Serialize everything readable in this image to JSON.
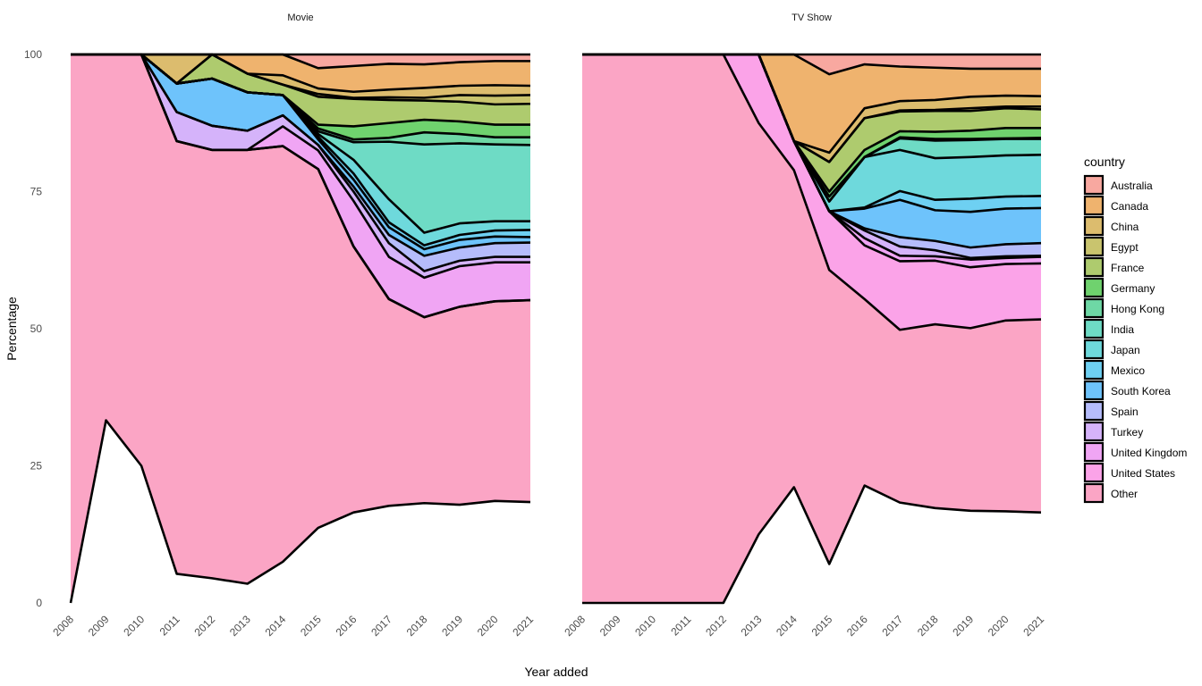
{
  "chart_data": {
    "type": "area",
    "stacking": "percent",
    "xlabel": "Year added",
    "ylabel": "Percentage",
    "ylim": [
      0,
      100
    ],
    "yticks": [
      0,
      25,
      50,
      75,
      100
    ],
    "x": [
      2008,
      2009,
      2010,
      2011,
      2012,
      2013,
      2014,
      2015,
      2016,
      2017,
      2018,
      2019,
      2020,
      2021
    ],
    "grid": false,
    "legend": {
      "title": "country",
      "position": "right",
      "entries": [
        "Australia",
        "Canada",
        "China",
        "Egypt",
        "France",
        "Germany",
        "Hong Kong",
        "India",
        "Japan",
        "Mexico",
        "South Korea",
        "Spain",
        "Turkey",
        "United Kingdom",
        "United States",
        "Other"
      ]
    },
    "colors": {
      "Australia": "#F8A8A0",
      "Canada": "#EFB36E",
      "China": "#DCBC6E",
      "Egypt": "#C9C46E",
      "France": "#AECB6E",
      "Germany": "#6FD26E",
      "Hong Kong": "#6ED8A5",
      "India": "#6EDBC5",
      "Japan": "#6ED9DC",
      "Mexico": "#6ED0F2",
      "South Korea": "#6EC3FB",
      "Spain": "#B5BCFB",
      "Turkey": "#D5B3FA",
      "United Kingdom": "#F0A5F4",
      "United States": "#FBA3E8",
      "Other": "#FBA5C5"
    },
    "panels": [
      {
        "title": "Movie",
        "boundaries": [
          [
            0,
            33.3,
            25,
            5.3,
            4.5,
            3.5,
            7.5,
            13.7,
            16.5,
            17.7,
            18.2,
            17.9,
            18.6,
            18.4
          ],
          [
            100,
            100,
            100,
            84.2,
            82.6,
            82.6,
            83.3,
            79.1,
            65,
            55.4,
            52.1,
            54,
            55,
            55.2
          ],
          [
            100,
            100,
            100,
            84.2,
            82.6,
            82.6,
            83.3,
            79.1,
            65,
            55.4,
            52.1,
            54,
            55,
            55.2
          ],
          [
            100,
            100,
            100,
            84.2,
            82.6,
            82.6,
            86.9,
            82.5,
            73.3,
            63.1,
            59.3,
            61.4,
            62.1,
            62.1
          ],
          [
            100,
            100,
            100,
            89.5,
            87,
            86.1,
            88.9,
            83.5,
            75,
            65.6,
            60.5,
            62.4,
            63.1,
            63.1
          ],
          [
            100,
            100,
            100,
            89.5,
            87,
            86.1,
            88.9,
            83.5,
            75.9,
            67.1,
            63.3,
            64.8,
            65.6,
            65.7
          ],
          [
            100,
            100,
            100,
            94.7,
            95.6,
            93.1,
            92.6,
            84.5,
            77.2,
            68.5,
            64.5,
            66.2,
            66.8,
            66.7
          ],
          [
            100,
            100,
            100,
            94.7,
            95.6,
            93.1,
            92.6,
            85,
            78.3,
            69.4,
            65.2,
            67.1,
            67.9,
            68
          ],
          [
            100,
            100,
            100,
            94.7,
            95.6,
            93.1,
            92.6,
            85.5,
            80.8,
            73.6,
            67.5,
            69.2,
            69.6,
            69.6
          ],
          [
            100,
            100,
            100,
            94.7,
            95.6,
            93.1,
            92.6,
            86,
            84,
            84.1,
            83.6,
            83.8,
            83.6,
            83.5
          ],
          [
            100,
            100,
            100,
            94.7,
            95.6,
            93.1,
            92.6,
            86.5,
            84.5,
            84.8,
            85.8,
            85.5,
            84.9,
            84.9
          ],
          [
            100,
            100,
            100,
            94.7,
            95.6,
            93.1,
            92.6,
            87.2,
            86.9,
            87.5,
            88.1,
            87.8,
            87.2,
            87.2
          ],
          [
            100,
            100,
            100,
            94.7,
            100,
            96.5,
            94.5,
            92.3,
            91.9,
            91.7,
            91.6,
            91.4,
            90.9,
            91
          ],
          [
            100,
            100,
            100,
            94.7,
            100,
            96.5,
            94.5,
            92.8,
            92.1,
            92.2,
            92.1,
            92.6,
            92.5,
            92.6
          ],
          [
            100,
            100,
            100,
            100,
            100,
            96.5,
            96.2,
            93.8,
            93.2,
            93.6,
            93.9,
            94.3,
            94.4,
            94.3
          ],
          [
            100,
            100,
            100,
            100,
            100,
            100,
            100,
            97.5,
            97.9,
            98.3,
            98.2,
            98.6,
            98.8,
            98.8
          ],
          [
            100,
            100,
            100,
            100,
            100,
            100,
            100,
            100,
            100,
            100,
            100,
            100,
            100,
            100
          ]
        ]
      },
      {
        "title": "TV Show",
        "boundaries": [
          [
            0,
            0,
            0,
            0,
            0,
            12.5,
            21.1,
            7.1,
            21.4,
            18.3,
            17.3,
            16.8,
            16.7,
            16.5
          ],
          [
            100,
            100,
            100,
            100,
            100,
            87.5,
            78.9,
            60.7,
            55.4,
            49.8,
            50.8,
            50.1,
            51.5,
            51.7
          ],
          [
            100,
            100,
            100,
            100,
            100,
            100,
            84.2,
            71.4,
            65.2,
            62.3,
            62.4,
            61.2,
            61.8,
            61.9
          ],
          [
            100,
            100,
            100,
            100,
            100,
            100,
            84.2,
            71.4,
            66.5,
            63.3,
            63.2,
            62.6,
            62.9,
            63.1
          ],
          [
            100,
            100,
            100,
            100,
            100,
            100,
            84.2,
            71.4,
            67.9,
            65,
            64.3,
            62.9,
            63.2,
            63.3
          ],
          [
            100,
            100,
            100,
            100,
            100,
            100,
            84.2,
            71.4,
            68.3,
            66.7,
            66,
            64.8,
            65.4,
            65.6
          ],
          [
            100,
            100,
            100,
            100,
            100,
            100,
            84.2,
            71.4,
            71.9,
            73.5,
            71.6,
            71.3,
            71.9,
            72
          ],
          [
            100,
            100,
            100,
            100,
            100,
            100,
            84.2,
            71.4,
            72.1,
            75.1,
            73.5,
            73.7,
            74.1,
            74.2
          ],
          [
            100,
            100,
            100,
            100,
            100,
            100,
            84.2,
            73.2,
            81.3,
            82.6,
            81.1,
            81.3,
            81.6,
            81.7
          ],
          [
            100,
            100,
            100,
            100,
            100,
            100,
            84.2,
            73.2,
            81.3,
            84.7,
            84.3,
            84.4,
            84.6,
            84.6
          ],
          [
            100,
            100,
            100,
            100,
            100,
            100,
            84.2,
            74.1,
            81.3,
            84.9,
            84.6,
            84.6,
            84.7,
            84.8
          ],
          [
            100,
            100,
            100,
            100,
            100,
            100,
            84.2,
            75.0,
            82.6,
            86,
            85.9,
            86.1,
            86.6,
            86.6
          ],
          [
            100,
            100,
            100,
            100,
            100,
            100,
            84.2,
            80.4,
            88.4,
            89.6,
            89.7,
            89.7,
            90.2,
            90
          ],
          [
            100,
            100,
            100,
            100,
            100,
            100,
            84.2,
            80.4,
            88.4,
            89.8,
            89.9,
            90.2,
            90.5,
            90.5
          ],
          [
            100,
            100,
            100,
            100,
            100,
            100,
            84.2,
            82.1,
            90.2,
            91.5,
            91.7,
            92.3,
            92.5,
            92.4
          ],
          [
            100,
            100,
            100,
            100,
            100,
            100,
            100,
            96.4,
            98.2,
            97.8,
            97.6,
            97.4,
            97.4,
            97.4
          ],
          [
            100,
            100,
            100,
            100,
            100,
            100,
            100,
            100,
            100,
            100,
            100,
            100,
            100,
            100
          ]
        ]
      }
    ]
  }
}
